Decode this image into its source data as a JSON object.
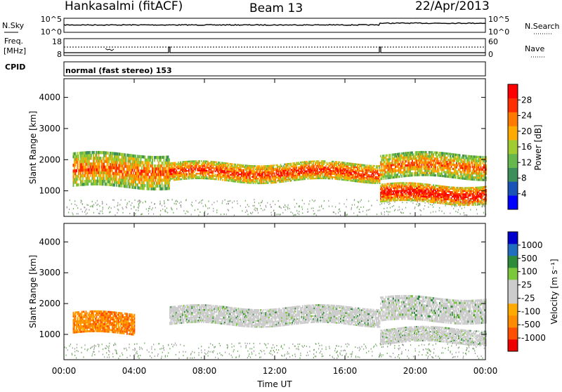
{
  "header": {
    "station": "Hankasalmi (fitACF)",
    "beam": "Beam 13",
    "date": "22/Apr/2013"
  },
  "top_panels": {
    "nsky": {
      "label": "N.Sky",
      "ticks": [
        "10^5",
        "10^0"
      ]
    },
    "nsearch": {
      "label": "N.Search",
      "ticks": [
        "10^5",
        "10^0"
      ]
    },
    "freq": {
      "label_line1": "Freq.",
      "label_line2": "[MHz]",
      "ticks": [
        "18",
        "8"
      ]
    },
    "nave": {
      "label": "Nave",
      "ticks": [
        "60",
        "0"
      ]
    },
    "cpid": {
      "label": "CPID",
      "text": "normal (fast stereo) 153"
    }
  },
  "colors": {
    "power_scale": [
      "#0000ff",
      "#1a53b8",
      "#3c8e5a",
      "#66b84c",
      "#a0cc30",
      "#ffaa00",
      "#ff7a00",
      "#ff3000",
      "#ff0000"
    ],
    "velocity_scale": [
      "#ee0000",
      "#ff5000",
      "#ff8c00",
      "#ffaa00",
      "#cccccc",
      "#cccccc",
      "#7cc83c",
      "#2e8b3a",
      "#1f6ebf",
      "#0000cc"
    ]
  },
  "chart_data": [
    {
      "type": "heatmap",
      "name": "power",
      "ylabel": "Slant Range [km]",
      "ylim": [
        180,
        4600
      ],
      "yticks": [
        "4000",
        "3000",
        "2000",
        "1000"
      ],
      "colorbar": {
        "label": "Power [dB]",
        "ticks": [
          "28",
          "24",
          "20",
          "16",
          "12",
          "8",
          "4"
        ]
      },
      "bands": [
        {
          "t0": 0.5,
          "t1": 6,
          "r_lo": 1100,
          "r_hi": 2200,
          "level": 0.6
        },
        {
          "t0": 6,
          "t1": 18,
          "r_lo": 1300,
          "r_hi": 1900,
          "level": 0.8
        },
        {
          "t0": 18,
          "t1": 24,
          "r_lo": 1400,
          "r_hi": 2200,
          "level": 0.6
        },
        {
          "t0": 18,
          "t1": 24,
          "r_lo": 600,
          "r_hi": 1200,
          "level": 0.95
        }
      ]
    },
    {
      "type": "heatmap",
      "name": "velocity",
      "ylabel": "Slant Range [km]",
      "ylim": [
        180,
        4600
      ],
      "yticks": [
        "4000",
        "3000",
        "2000",
        "1000"
      ],
      "xlabel": "Time UT",
      "xticks": [
        "00:00",
        "04:00",
        "08:00",
        "12:00",
        "16:00",
        "20:00",
        "00:00"
      ],
      "colorbar": {
        "label": "Velocity [m s⁻¹]",
        "ticks": [
          "1000",
          "500",
          "100",
          "25",
          "-25",
          "-100",
          "-500",
          "-1000"
        ]
      },
      "bands": [
        {
          "t0": 0.5,
          "t1": 4,
          "r_lo": 1000,
          "r_hi": 1700,
          "level": -200
        },
        {
          "t0": 6,
          "t1": 18,
          "r_lo": 1300,
          "r_hi": 1900,
          "level": 0
        },
        {
          "t0": 18,
          "t1": 24,
          "r_lo": 700,
          "r_hi": 1200,
          "level": 0
        },
        {
          "t0": 18,
          "t1": 24,
          "r_lo": 1400,
          "r_hi": 2200,
          "level": 0
        }
      ]
    }
  ]
}
